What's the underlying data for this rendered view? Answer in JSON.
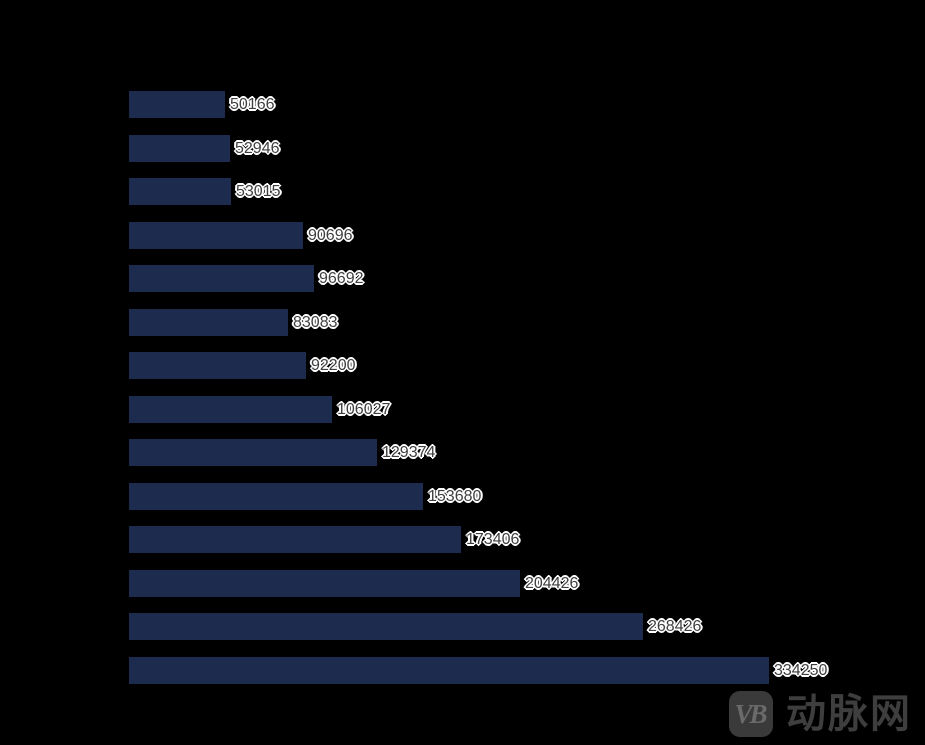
{
  "background": "#000000",
  "chart_data": {
    "type": "bar",
    "orientation": "horizontal",
    "title": "",
    "xlabel": "",
    "ylabel": "",
    "values": [
      50166,
      52946,
      53015,
      90696,
      96692,
      83083,
      92200,
      106027,
      129374,
      153680,
      173406,
      204426,
      268426,
      334250
    ],
    "value_labels": [
      "50166",
      "52946",
      "53015",
      "90696",
      "96692",
      "83083",
      "92200",
      "106027",
      "129374",
      "153680",
      "173406",
      "204426",
      "268426",
      "334250"
    ],
    "bar_color": "#1c2b4e",
    "value_label_color": "#3f3f3f",
    "value_label_halo_color": "#ffffff",
    "xlim": [
      0,
      334250
    ],
    "gridlines": false,
    "legend": false,
    "axis_tick_labels_visible": false
  },
  "watermark": {
    "logo_monogram": "VB",
    "brand_text": "动脉网",
    "logo_bg_color": "#3a3a3a",
    "logo_monogram_color": "#6a6a6a",
    "brand_text_color": "#3e3e3e"
  }
}
